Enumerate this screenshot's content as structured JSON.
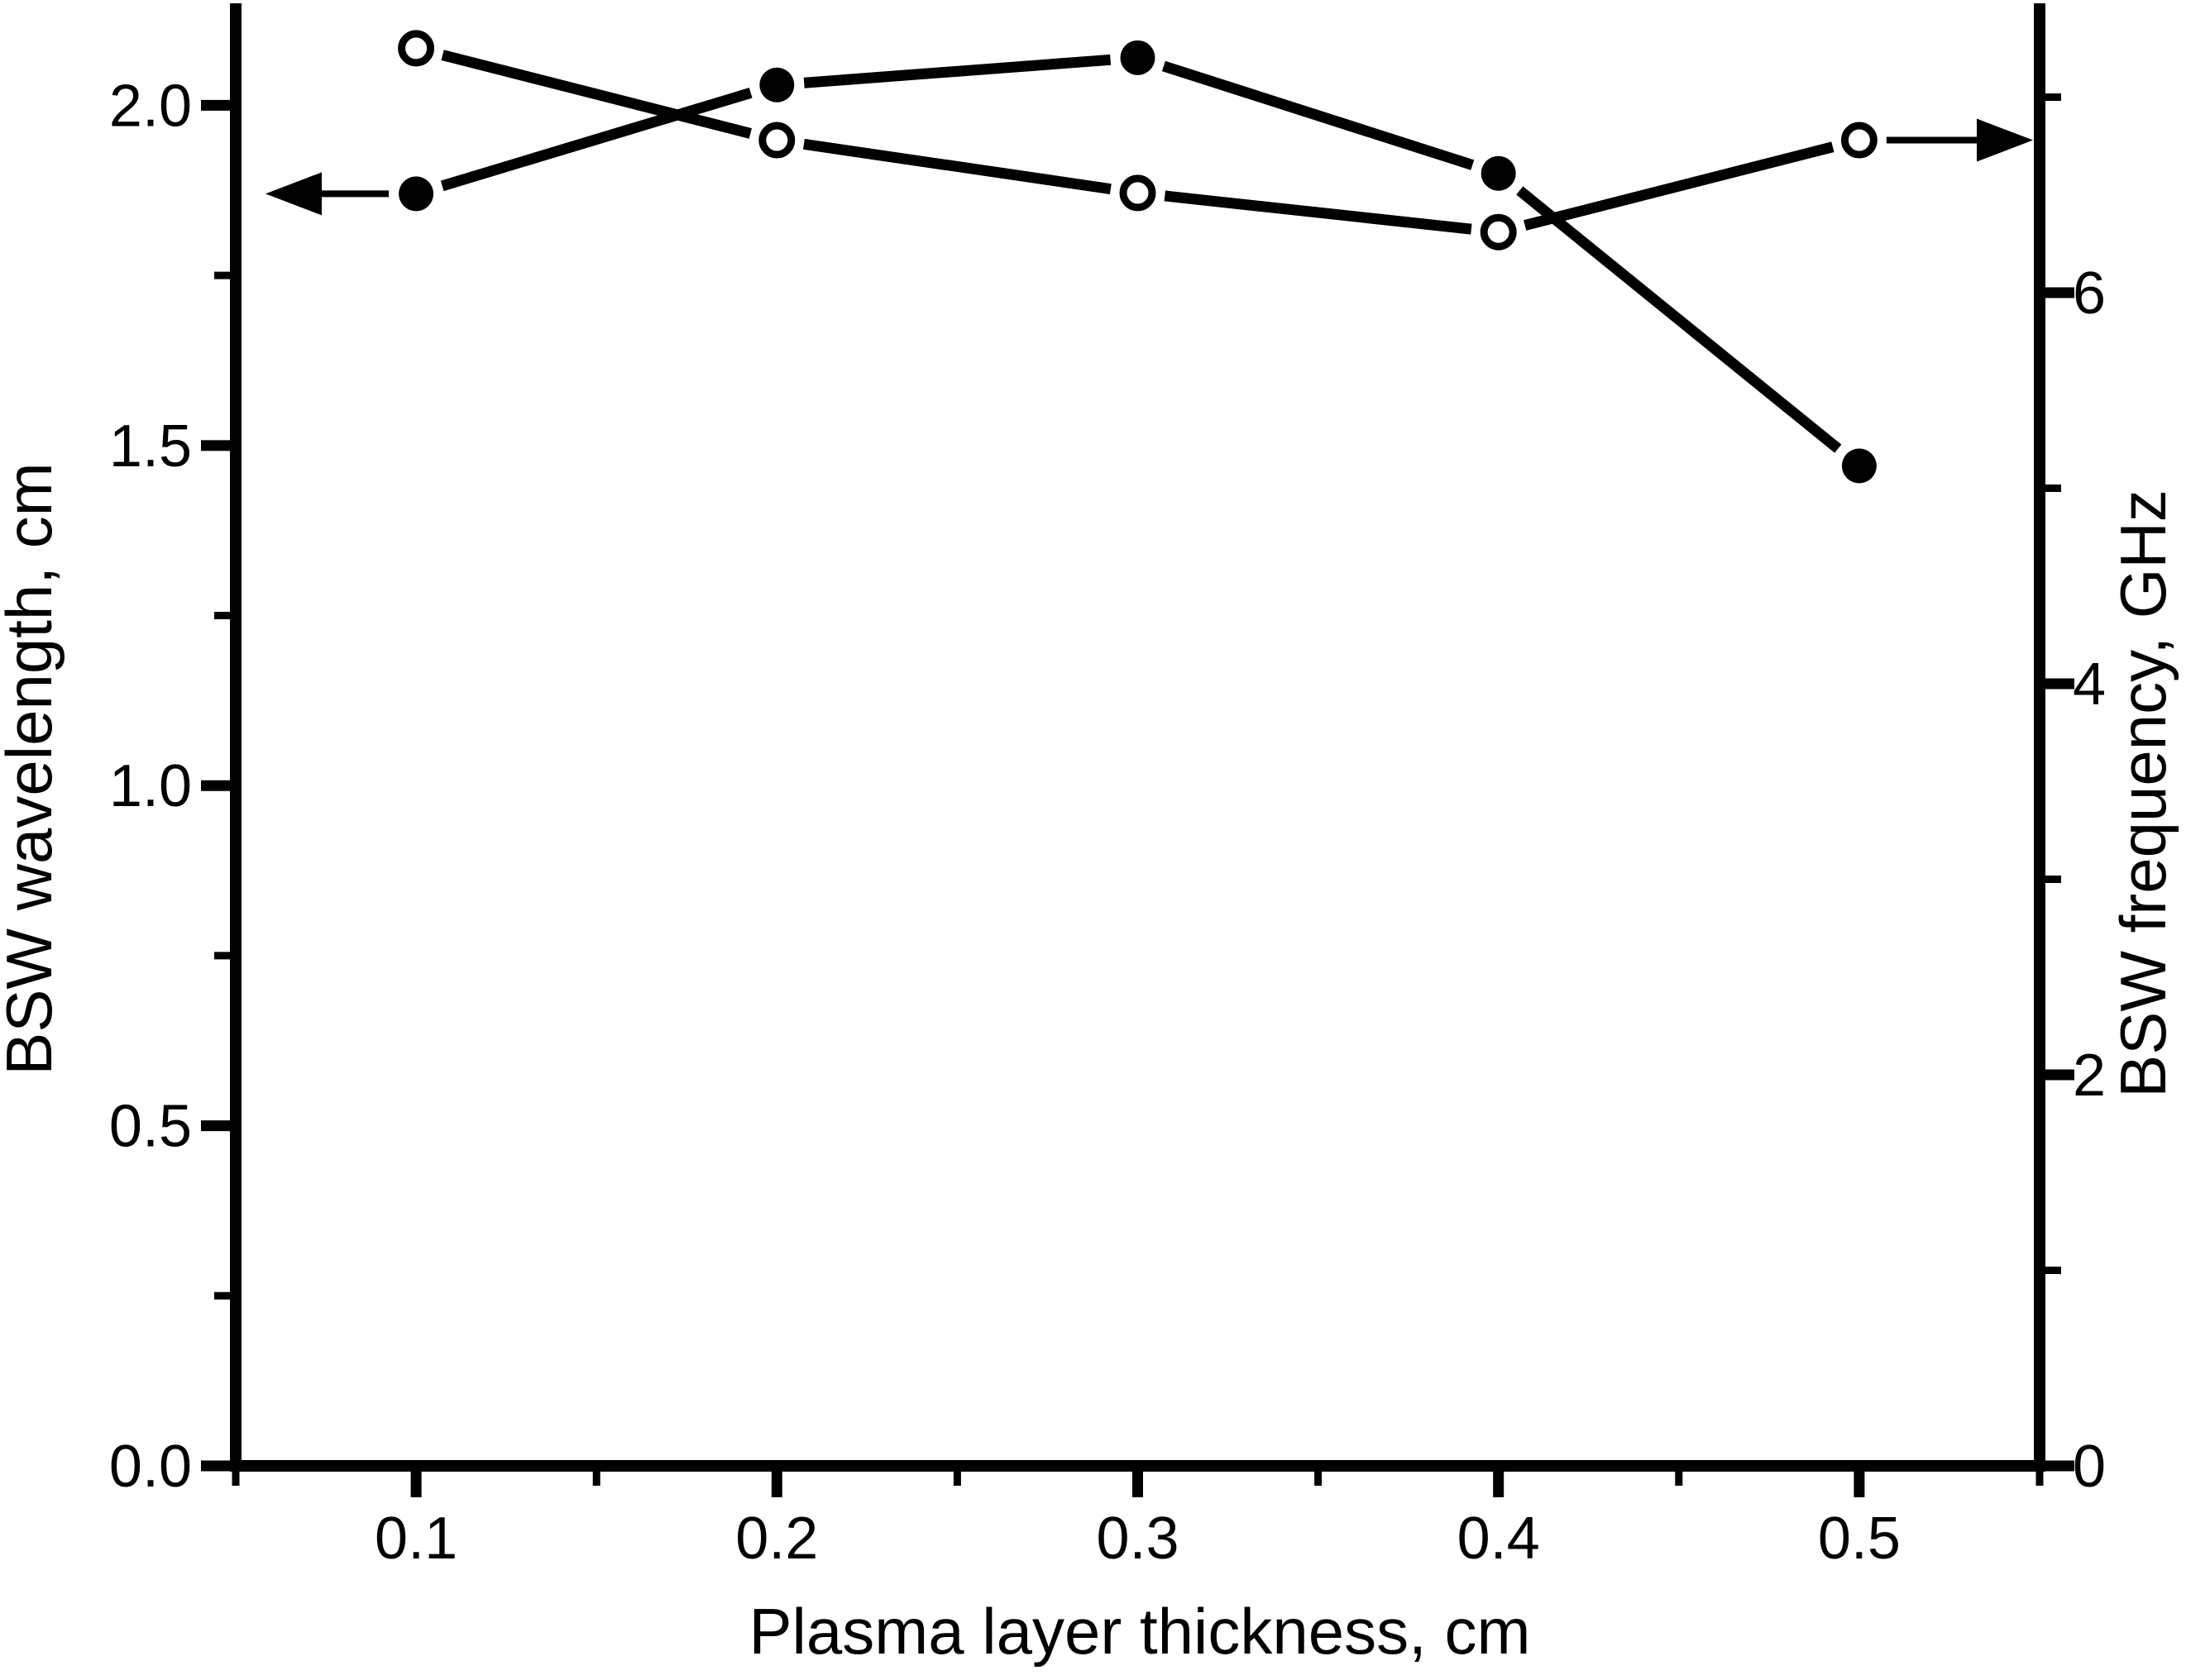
{
  "figure": {
    "background": "#ffffff",
    "ink_color": "#000000"
  },
  "chart_data": {
    "type": "line",
    "title": "",
    "xlabel": "Plasma layer thickness, cm",
    "ylabel_left": "BSW wavelength, cm",
    "ylabel_right": "BSW frequency, GHz",
    "grid": false,
    "legend": "none",
    "x": [
      0.1,
      0.2,
      0.3,
      0.4,
      0.5
    ],
    "series": [
      {
        "name": "BSW wavelength",
        "axis": "left",
        "marker": "filled-circle",
        "line_color": "#000000",
        "values": [
          1.87,
          2.03,
          2.07,
          1.9,
          1.47
        ]
      },
      {
        "name": "BSW frequency",
        "axis": "right",
        "marker": "open-circle",
        "line_color": "#000000",
        "values": [
          7.25,
          6.78,
          6.51,
          6.31,
          6.78
        ]
      }
    ],
    "axes": {
      "x": {
        "lim": [
          0.05,
          0.55
        ],
        "major": [
          0.1,
          0.2,
          0.3,
          0.4,
          0.5
        ],
        "labels": [
          "0.1",
          "0.2",
          "0.3",
          "0.4",
          "0.5"
        ],
        "minor": [
          0.05,
          0.15,
          0.25,
          0.35,
          0.45,
          0.55
        ]
      },
      "left": {
        "lim": [
          0,
          2.15
        ],
        "major": [
          0.0,
          0.5,
          1.0,
          1.5,
          2.0
        ],
        "labels": [
          "0.0",
          "0.5",
          "1.0",
          "1.5",
          "2.0"
        ],
        "minor": [
          0.25,
          0.75,
          1.25,
          1.75
        ]
      },
      "right": {
        "lim": [
          0,
          7.48
        ],
        "major": [
          0,
          2,
          4,
          6
        ],
        "labels": [
          "0",
          "2",
          "4",
          "6"
        ],
        "minor": [
          1,
          3,
          5,
          7
        ]
      }
    },
    "annotations": [
      {
        "type": "arrow",
        "direction": "left",
        "series": "BSW wavelength",
        "at_x": 0.1
      },
      {
        "type": "arrow",
        "direction": "right",
        "series": "BSW frequency",
        "at_x": 0.5
      }
    ]
  }
}
